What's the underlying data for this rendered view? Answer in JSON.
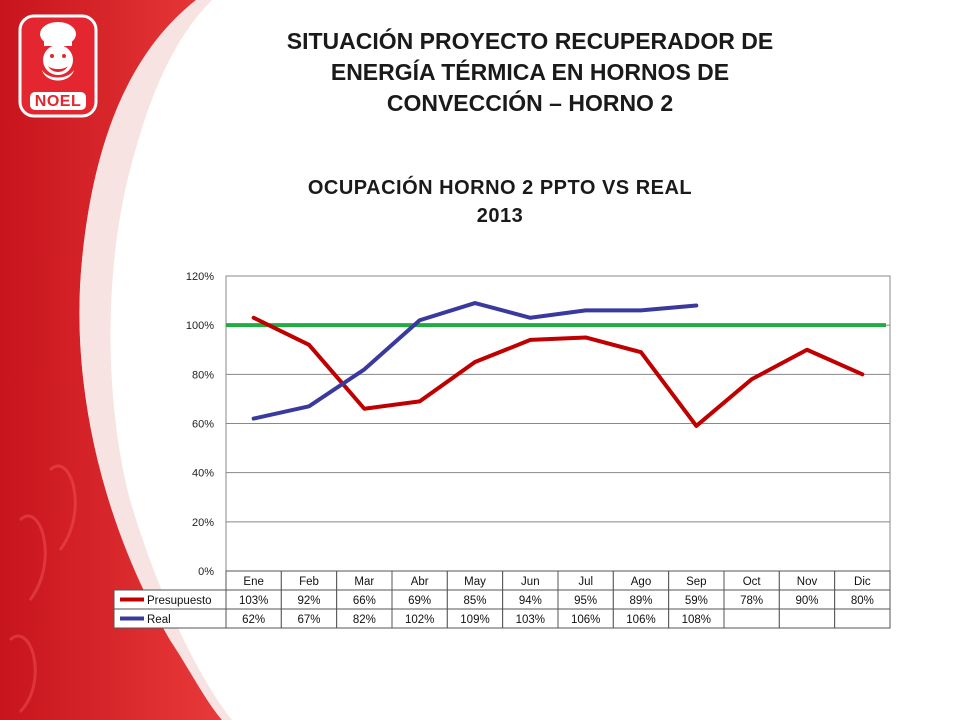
{
  "logo": {
    "brand": "NOEL"
  },
  "slide_title": {
    "line1": "SITUACIÓN PROYECTO RECUPERADOR DE",
    "line2": "ENERGÍA TÉRMICA EN HORNOS DE",
    "line3": "CONVECCIÓN – HORNO 2"
  },
  "colors": {
    "brand_red": "#e3262f",
    "presupuesto": "#c00000",
    "real": "#3a3a9e",
    "target_line": "#22aa44"
  },
  "chart_data": {
    "type": "line",
    "title_line1": "OCUPACIÓN HORNO 2 PPTO VS REAL",
    "title_line2": "2013",
    "categories": [
      "Ene",
      "Feb",
      "Mar",
      "Abr",
      "May",
      "Jun",
      "Jul",
      "Ago",
      "Sep",
      "Oct",
      "Nov",
      "Dic"
    ],
    "series": [
      {
        "name": "Presupuesto",
        "values": [
          103,
          92,
          66,
          69,
          85,
          94,
          95,
          89,
          59,
          78,
          90,
          80
        ]
      },
      {
        "name": "Real",
        "values": [
          62,
          67,
          82,
          102,
          109,
          103,
          106,
          106,
          108,
          null,
          null,
          null
        ]
      }
    ],
    "reference_line": 100,
    "yticks": [
      0,
      20,
      40,
      60,
      80,
      100,
      120
    ],
    "ytick_labels": [
      "0%",
      "20%",
      "40%",
      "60%",
      "80%",
      "100%",
      "120%"
    ],
    "ylim": [
      0,
      120
    ],
    "grid": true,
    "legend": "data-table",
    "table_rows": [
      {
        "label": "Presupuesto",
        "cells": [
          "103%",
          "92%",
          "66%",
          "69%",
          "85%",
          "94%",
          "95%",
          "89%",
          "59%",
          "78%",
          "90%",
          "80%"
        ]
      },
      {
        "label": "Real",
        "cells": [
          "62%",
          "67%",
          "82%",
          "102%",
          "109%",
          "103%",
          "106%",
          "106%",
          "108%",
          "",
          "",
          ""
        ]
      }
    ]
  }
}
